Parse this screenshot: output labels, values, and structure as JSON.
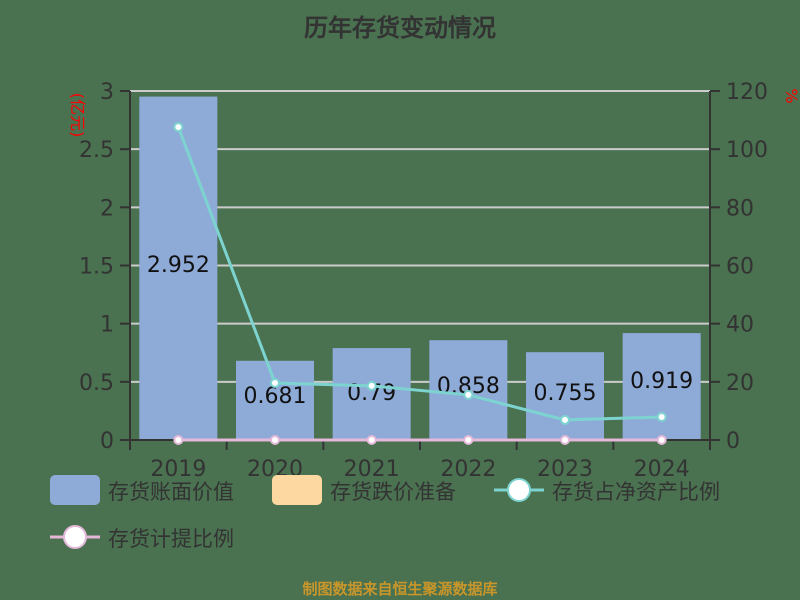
{
  "title": "历年存货变动情况",
  "footer": "制图数据来自恒生聚源数据库",
  "left_axis_unit": "(亿元)",
  "right_axis_unit": "%",
  "colors": {
    "background": "#4a7150",
    "bar": "#8eabd8",
    "provision_bar": "#fdd8a0",
    "ratio_line": "#7dd3d0",
    "provision_line": "#e5b8d9",
    "grid": "#cccccc",
    "axis_text": "#333333",
    "unit_text": "#ff0000",
    "footer": "#c8962a"
  },
  "chart_data": {
    "type": "bar",
    "title": "历年存货变动情况",
    "categories": [
      "2019",
      "2020",
      "2021",
      "2022",
      "2023",
      "2024"
    ],
    "series": [
      {
        "name": "存货账面价值",
        "type": "bar",
        "axis": "left",
        "values": [
          2.952,
          0.681,
          0.79,
          0.858,
          0.755,
          0.919
        ]
      },
      {
        "name": "存货跌价准备",
        "type": "bar",
        "axis": "left",
        "values": [
          0,
          0,
          0,
          0,
          0,
          0
        ]
      },
      {
        "name": "存货占净资产比例",
        "type": "line",
        "axis": "right",
        "values": [
          107.6,
          19.6,
          18.6,
          15.5,
          6.9,
          7.9
        ]
      },
      {
        "name": "存货计提比例",
        "type": "line",
        "axis": "right",
        "values": [
          0,
          0,
          0,
          0,
          0,
          0
        ]
      }
    ],
    "data_labels": [
      "2.952",
      "0.681",
      "0.79",
      "0.858",
      "0.755",
      "0.919"
    ],
    "ylabel": "(亿元)",
    "ylabel_right": "%",
    "ylim": [
      0,
      3
    ],
    "ylim_right": [
      0,
      120
    ],
    "yticks": [
      "0",
      "0.5",
      "1",
      "1.5",
      "2",
      "2.5",
      "3"
    ],
    "yticks_right": [
      "0",
      "20",
      "40",
      "60",
      "80",
      "100",
      "120"
    ],
    "grid": true,
    "legend_position": "bottom"
  },
  "legend": [
    {
      "label": "存货账面价值",
      "kind": "rect",
      "color": "#8eabd8"
    },
    {
      "label": "存货跌价准备",
      "kind": "rect",
      "color": "#fdd8a0"
    },
    {
      "label": "存货占净资产比例",
      "kind": "line",
      "color": "#7dd3d0"
    },
    {
      "label": "存货计提比例",
      "kind": "line",
      "color": "#e5b8d9"
    }
  ]
}
